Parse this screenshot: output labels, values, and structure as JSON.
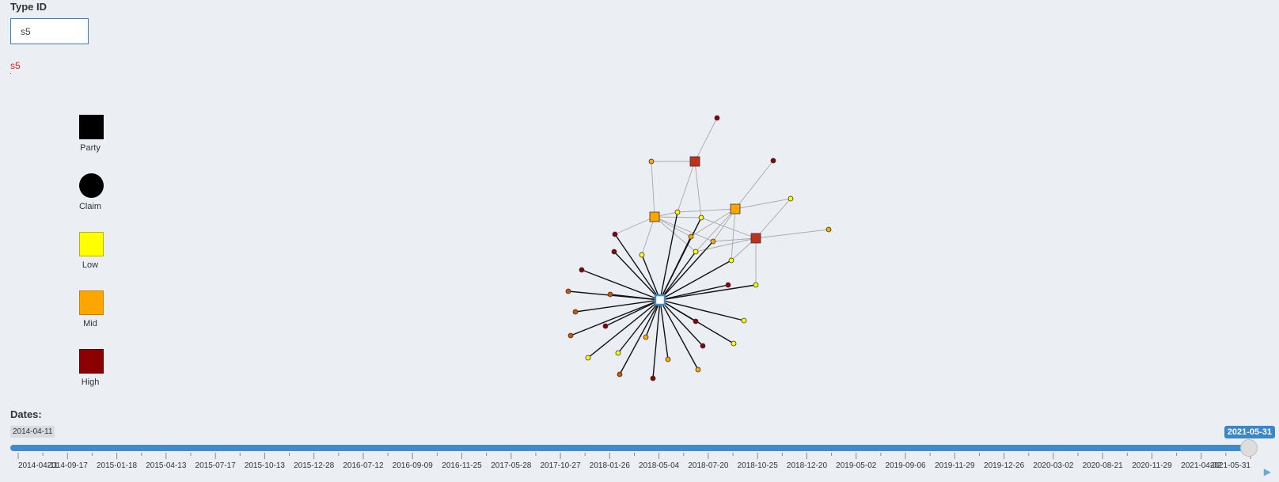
{
  "filter": {
    "label": "Type ID",
    "input_value": "s5",
    "result": "s5"
  },
  "legend": [
    {
      "label": "Party",
      "color": "#000000",
      "shape": "square"
    },
    {
      "label": "Claim",
      "color": "#000000",
      "shape": "circle"
    },
    {
      "label": "Low",
      "color": "#ffff00",
      "shape": "square"
    },
    {
      "label": "Mid",
      "color": "#ffa500",
      "shape": "square"
    },
    {
      "label": "High",
      "color": "#8b0000",
      "shape": "square"
    }
  ],
  "dates": {
    "label": "Dates:",
    "from": "2014-04-11",
    "to": "2021-05-31",
    "ticks": [
      "2014-04-11",
      "2014-09-17",
      "2015-01-18",
      "2015-04-13",
      "2015-07-17",
      "2015-10-13",
      "2015-12-28",
      "2016-07-12",
      "2016-09-09",
      "2016-11-25",
      "2017-05-28",
      "2017-10-27",
      "2018-01-26",
      "2018-05-04",
      "2018-07-20",
      "2018-10-25",
      "2018-12-20",
      "2019-05-02",
      "2019-09-06",
      "2019-11-29",
      "2019-12-26",
      "2020-03-02",
      "2020-08-21",
      "2020-11-29",
      "2021-04-02",
      "2021-05-31"
    ],
    "play_icon": "play-icon"
  },
  "colors": {
    "accent": "#428bca",
    "selected_node": "#ffffff",
    "low": "#ffff00",
    "mid": "#ffa500",
    "high": "#8b0000",
    "mid_dark": "#cc5500",
    "high_red": "#c0301a"
  }
}
